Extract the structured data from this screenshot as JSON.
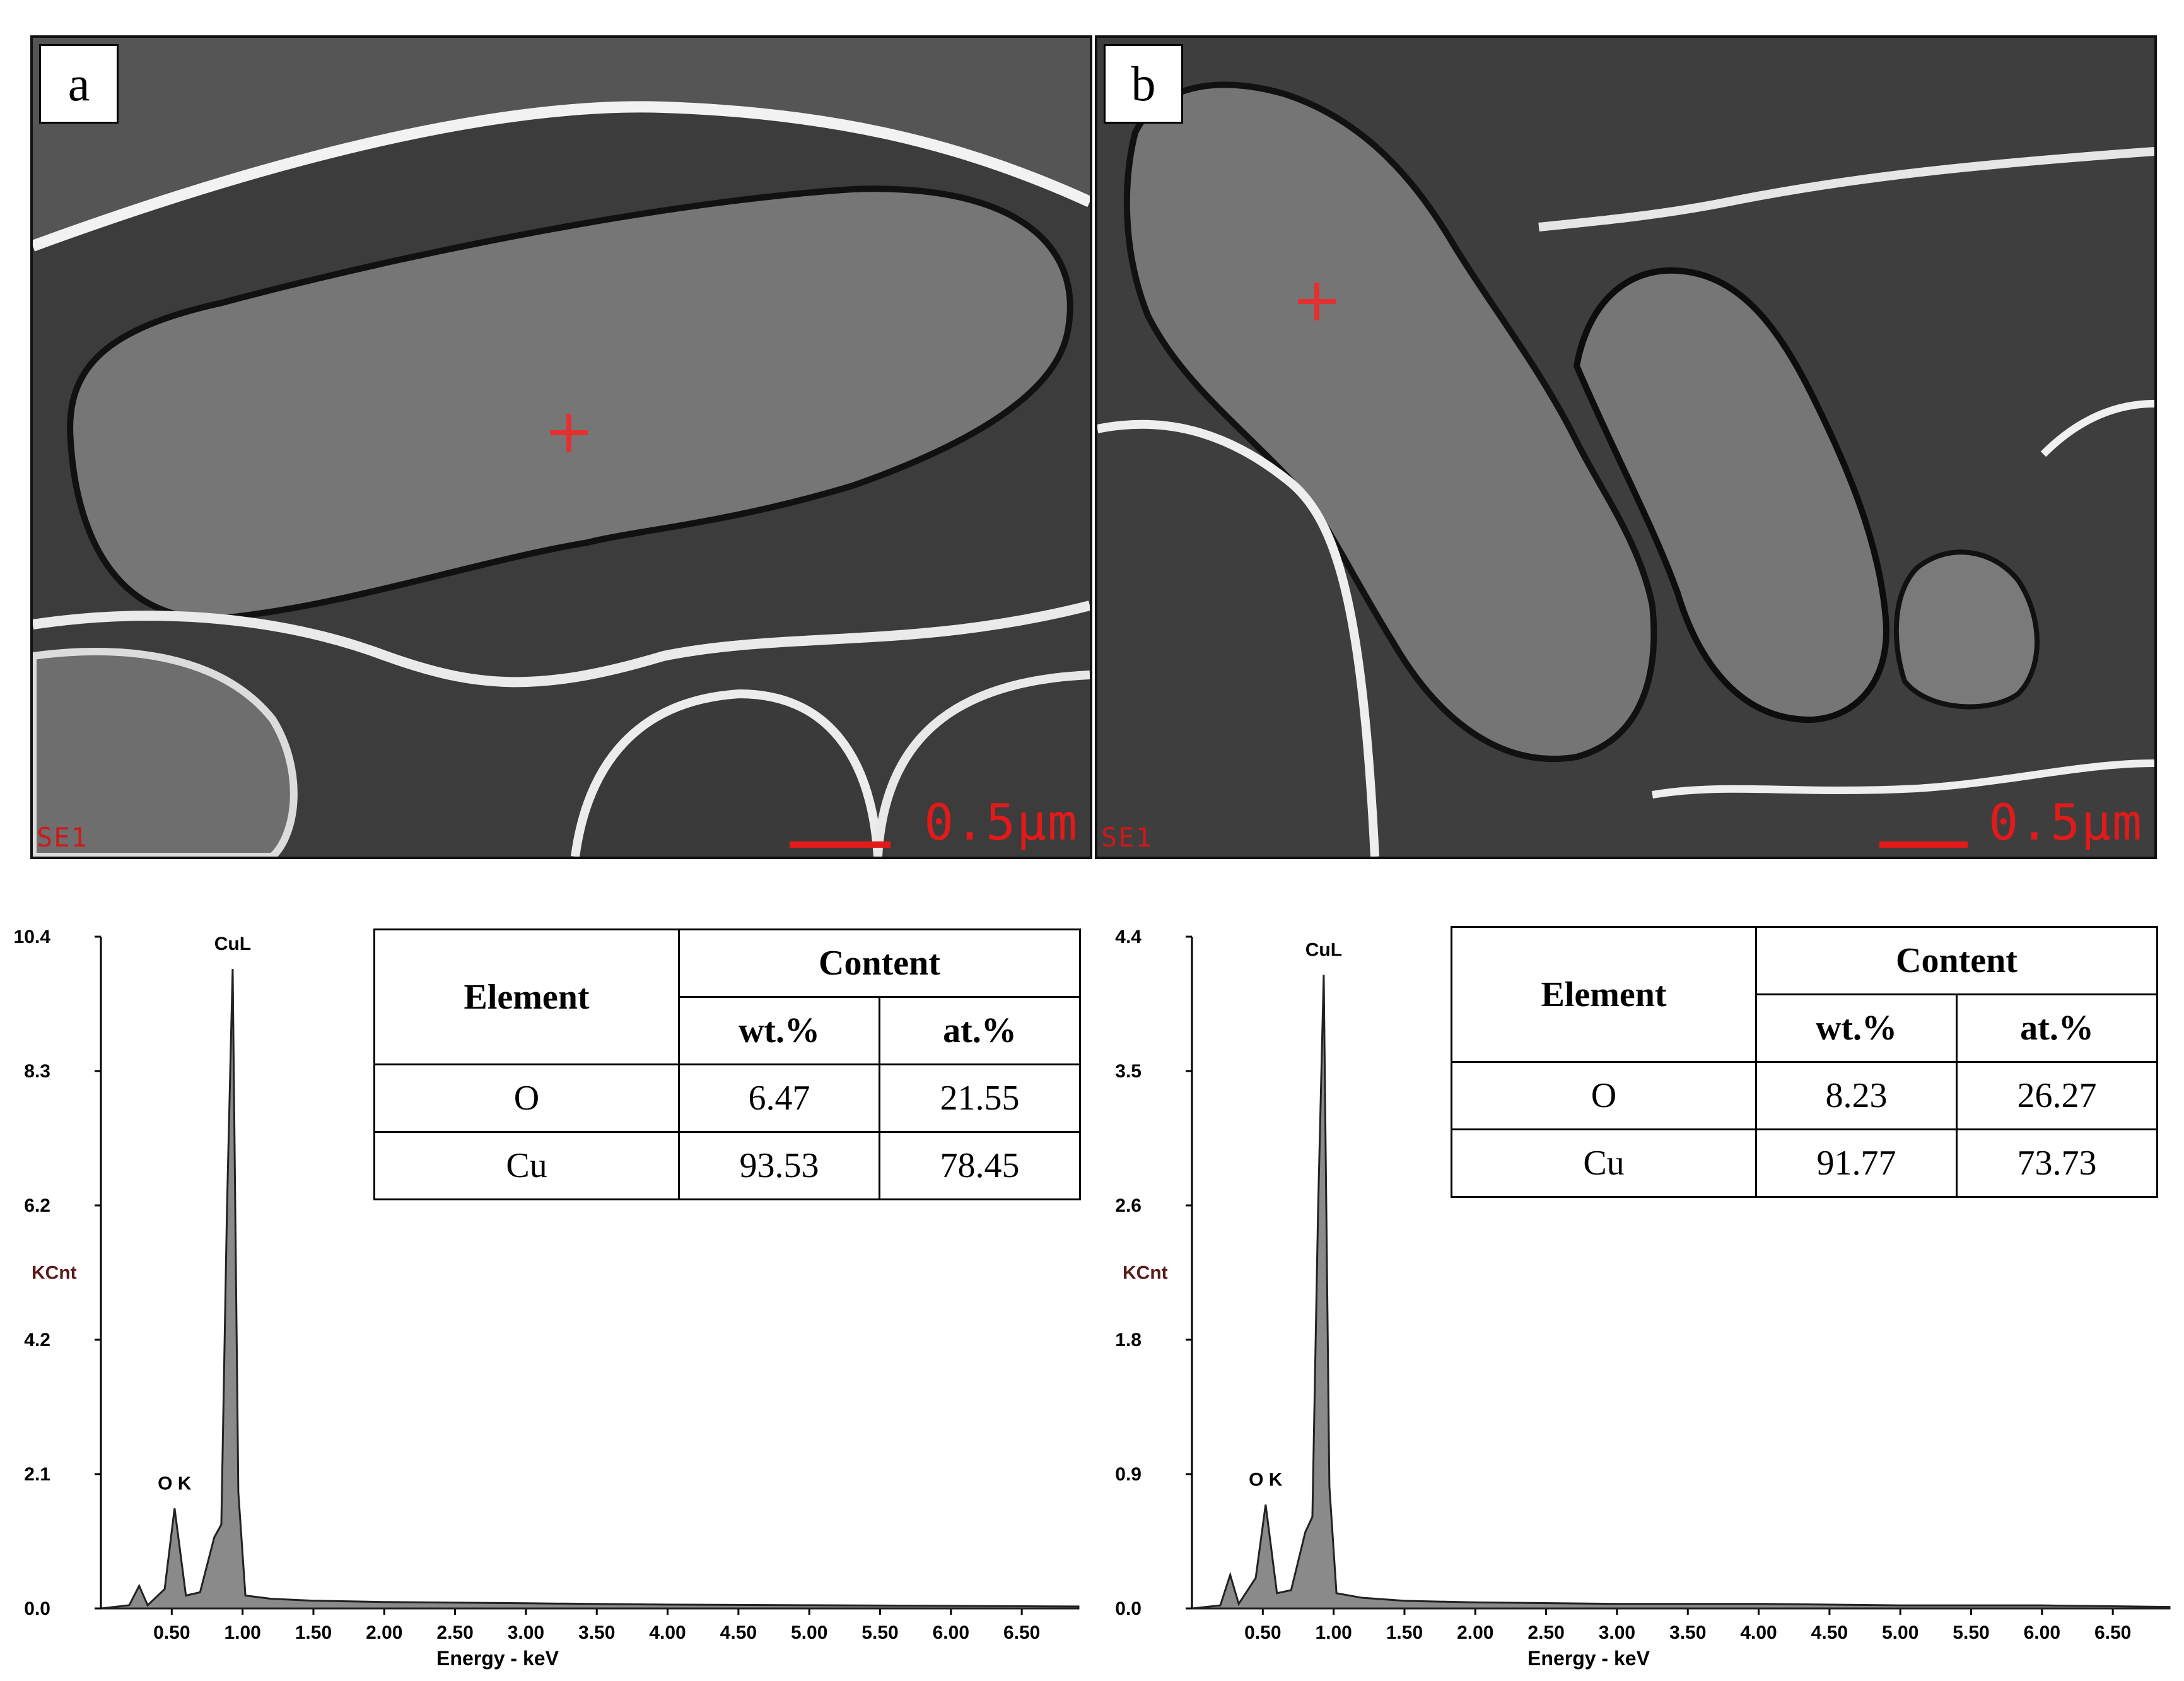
{
  "figure": {
    "panels": [
      {
        "letter": "a",
        "detector": "SE1",
        "scale_label": "0.5μm",
        "spectrum": {
          "y_ticks": [
            "0.0",
            "2.1",
            "4.2",
            "6.2",
            "8.3",
            "10.4"
          ],
          "y_unit": "KCnt",
          "x_label": "Energy - keV",
          "x_ticks": [
            "0.50",
            "1.00",
            "1.50",
            "2.00",
            "2.50",
            "3.00",
            "3.50",
            "4.00",
            "4.50",
            "5.00",
            "5.50",
            "6.00",
            "6.50"
          ],
          "peak_labels": [
            "O K",
            "CuL"
          ]
        },
        "table": {
          "col_element": "Element",
          "col_content": "Content",
          "sub_wt": "wt.%",
          "sub_at": "at.%",
          "rows": [
            {
              "element": "O",
              "wt": "6.47",
              "at": "21.55"
            },
            {
              "element": "Cu",
              "wt": "93.53",
              "at": "78.45"
            }
          ]
        }
      },
      {
        "letter": "b",
        "detector": "SE1",
        "scale_label": "0.5μm",
        "spectrum": {
          "y_ticks": [
            "0.0",
            "0.9",
            "1.8",
            "2.6",
            "3.5",
            "4.4"
          ],
          "y_unit": "KCnt",
          "x_label": "Energy - keV",
          "x_ticks": [
            "0.50",
            "1.00",
            "1.50",
            "2.00",
            "2.50",
            "3.00",
            "3.50",
            "4.00",
            "4.50",
            "5.00",
            "5.50",
            "6.00",
            "6.50"
          ],
          "peak_labels": [
            "O K",
            "CuL"
          ]
        },
        "table": {
          "col_element": "Element",
          "col_content": "Content",
          "sub_wt": "wt.%",
          "sub_at": "at.%",
          "rows": [
            {
              "element": "O",
              "wt": "8.23",
              "at": "26.27"
            },
            {
              "element": "Cu",
              "wt": "91.77",
              "at": "73.73"
            }
          ]
        }
      }
    ]
  },
  "chart_data": [
    {
      "type": "line",
      "title": "",
      "xlabel": "Energy - keV",
      "ylabel": "KCnt",
      "xlim": [
        0,
        6.9
      ],
      "ylim": [
        0,
        10.4
      ],
      "series": [
        {
          "x": [
            0.0,
            0.2,
            0.27,
            0.33,
            0.45,
            0.52,
            0.6,
            0.7,
            0.8,
            0.85,
            0.89,
            0.93,
            0.97,
            1.02,
            1.2,
            1.5,
            2.0,
            3.0,
            4.0,
            5.0,
            6.0,
            6.9
          ],
          "y": [
            0.0,
            0.05,
            0.35,
            0.05,
            0.3,
            1.55,
            0.2,
            0.25,
            1.1,
            1.3,
            6.2,
            9.9,
            1.8,
            0.2,
            0.15,
            0.12,
            0.1,
            0.08,
            0.06,
            0.05,
            0.04,
            0.03
          ]
        }
      ],
      "annotations": [
        {
          "text": "O K",
          "x": 0.52
        },
        {
          "text": "CuL",
          "x": 0.93
        }
      ],
      "grid": false
    },
    {
      "type": "line",
      "title": "",
      "xlabel": "Energy - keV",
      "ylabel": "KCnt",
      "xlim": [
        0,
        6.9
      ],
      "ylim": [
        0,
        4.4
      ],
      "series": [
        {
          "x": [
            0.0,
            0.2,
            0.27,
            0.33,
            0.45,
            0.52,
            0.6,
            0.7,
            0.8,
            0.85,
            0.89,
            0.93,
            0.97,
            1.02,
            1.2,
            1.5,
            2.0,
            3.0,
            4.0,
            5.0,
            6.0,
            6.9
          ],
          "y": [
            0.0,
            0.02,
            0.22,
            0.03,
            0.2,
            0.68,
            0.1,
            0.12,
            0.5,
            0.6,
            2.6,
            4.15,
            0.8,
            0.1,
            0.07,
            0.05,
            0.04,
            0.03,
            0.03,
            0.02,
            0.02,
            0.01
          ]
        }
      ],
      "annotations": [
        {
          "text": "O K",
          "x": 0.52
        },
        {
          "text": "CuL",
          "x": 0.93
        }
      ],
      "grid": false
    }
  ]
}
